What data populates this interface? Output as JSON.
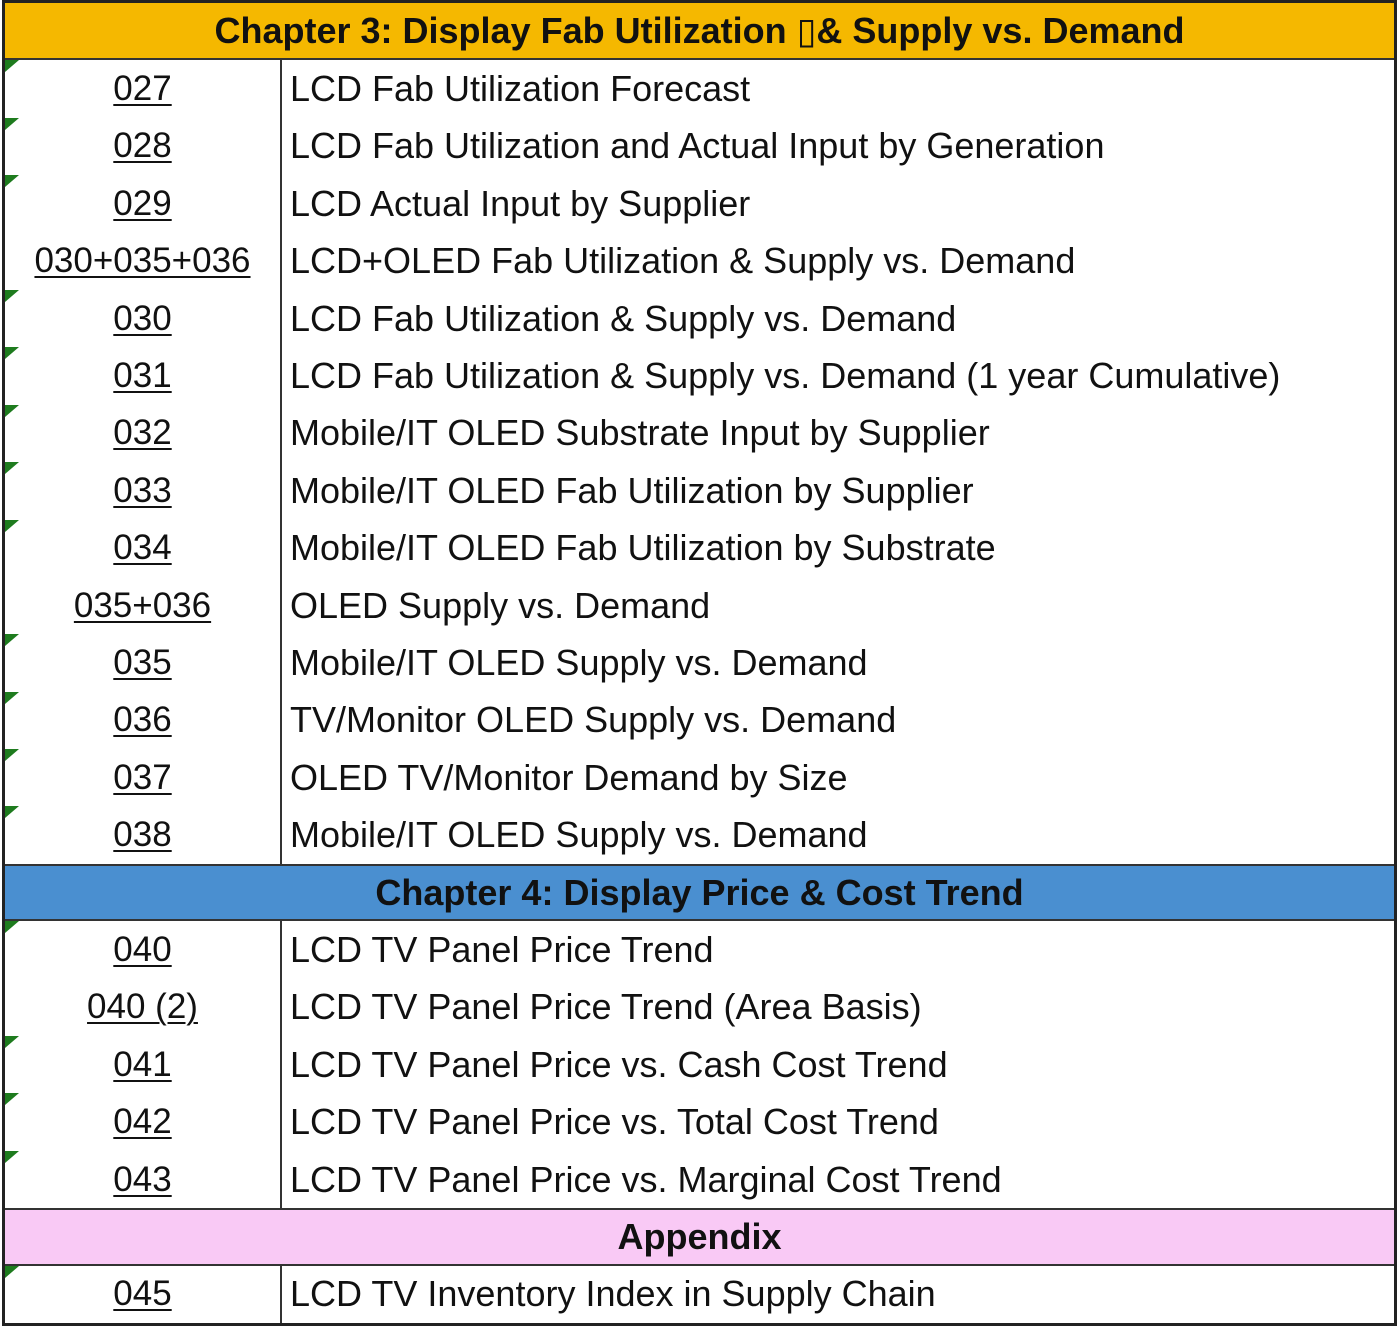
{
  "colors": {
    "chapter3_bg": "#f5b800",
    "chapter4_bg": "#4a8fd0",
    "appendix_bg": "#f9c9f5",
    "corner_mark": "#1e7b1e"
  },
  "sections": [
    {
      "key": "chapter3",
      "header": "Chapter 3: Display Fab Utilization ▯& Supply vs. Demand",
      "bg": "#f5b800",
      "rows": [
        {
          "num": "027",
          "title": "LCD Fab Utilization Forecast",
          "mark": true
        },
        {
          "num": "028",
          "title": "LCD Fab Utilization and Actual Input by Generation",
          "mark": true
        },
        {
          "num": "029",
          "title": "LCD Actual Input by Supplier",
          "mark": true
        },
        {
          "num": "030+035+036",
          "title": "LCD+OLED Fab Utilization & Supply vs. Demand",
          "mark": false
        },
        {
          "num": "030",
          "title": "LCD Fab Utilization & Supply vs. Demand",
          "mark": true
        },
        {
          "num": "031",
          "title": "LCD Fab Utilization & Supply vs. Demand (1 year Cumulative)",
          "mark": true
        },
        {
          "num": "032",
          "title": "Mobile/IT OLED Substrate Input by Supplier",
          "mark": true
        },
        {
          "num": "033",
          "title": "Mobile/IT OLED Fab Utilization by Supplier",
          "mark": true
        },
        {
          "num": "034",
          "title": "Mobile/IT OLED Fab Utilization by Substrate",
          "mark": true
        },
        {
          "num": "035+036",
          "title": "OLED Supply vs. Demand",
          "mark": false
        },
        {
          "num": "035",
          "title": "Mobile/IT OLED Supply vs. Demand",
          "mark": true
        },
        {
          "num": "036",
          "title": "TV/Monitor OLED Supply vs. Demand",
          "mark": true
        },
        {
          "num": "037",
          "title": "OLED TV/Monitor Demand by Size",
          "mark": true
        },
        {
          "num": "038",
          "title": "Mobile/IT OLED Supply vs. Demand",
          "mark": true
        }
      ]
    },
    {
      "key": "chapter4",
      "header": "Chapter 4: Display Price & Cost Trend",
      "bg": "#4a8fd0",
      "rows": [
        {
          "num": "040",
          "title": "LCD TV Panel Price Trend",
          "mark": true
        },
        {
          "num": "040 (2)",
          "title": "LCD TV Panel Price Trend (Area Basis)",
          "mark": false
        },
        {
          "num": "041",
          "title": "LCD TV Panel Price vs. Cash Cost Trend",
          "mark": true
        },
        {
          "num": "042",
          "title": "LCD TV Panel Price vs. Total Cost Trend",
          "mark": true
        },
        {
          "num": "043",
          "title": "LCD TV Panel Price vs. Marginal Cost Trend",
          "mark": true
        }
      ]
    },
    {
      "key": "appendix",
      "header": "Appendix",
      "bg": "#f9c9f5",
      "rows": [
        {
          "num": "045",
          "title": "LCD TV Inventory Index in Supply Chain",
          "mark": true
        }
      ]
    }
  ]
}
